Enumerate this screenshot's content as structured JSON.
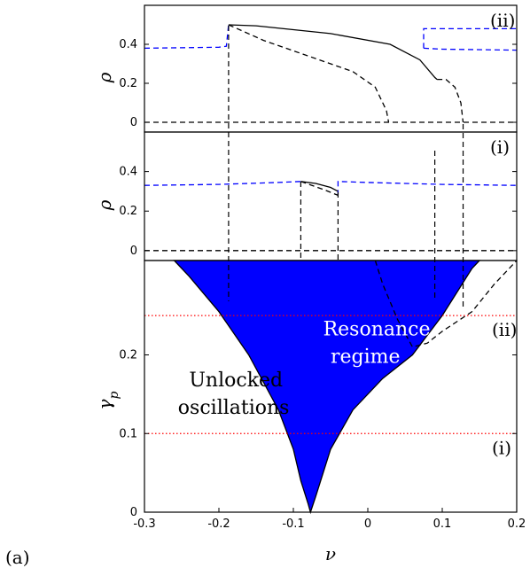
{
  "figure_label": "(a)",
  "chart_data": [
    {
      "type": "line",
      "panel": "top",
      "panel_tag": "(ii)",
      "ylabel": "ρ",
      "xlim": [
        -0.3,
        0.2
      ],
      "ylim": [
        -0.05,
        0.6
      ],
      "yticks": [
        "0",
        "0.2",
        "0.4"
      ],
      "grid": false,
      "series": [
        {
          "color": "#0000ff",
          "style": "dashed",
          "points": [
            [
              -0.3,
              0.38
            ],
            [
              -0.2,
              0.385
            ],
            [
              -0.19,
              0.39
            ],
            [
              -0.187,
              0.5
            ]
          ]
        },
        {
          "color": "#0000ff",
          "style": "dashed",
          "points": [
            [
              0.075,
              0.38
            ],
            [
              0.1,
              0.375
            ],
            [
              0.2,
              0.37
            ]
          ]
        },
        {
          "color": "#0000ff",
          "style": "dashed",
          "points": [
            [
              0.075,
              0.38
            ],
            [
              0.075,
              0.48
            ],
            [
              0.2,
              0.48
            ]
          ]
        },
        {
          "color": "#000000",
          "style": "solid",
          "points": [
            [
              -0.187,
              0.5
            ],
            [
              -0.15,
              0.495
            ],
            [
              -0.05,
              0.455
            ],
            [
              0.03,
              0.4
            ],
            [
              0.07,
              0.32
            ],
            [
              0.09,
              0.23
            ],
            [
              0.093,
              0.22
            ]
          ]
        },
        {
          "color": "#000000",
          "style": "dashed",
          "points": [
            [
              -0.187,
              0.5
            ],
            [
              -0.14,
              0.42
            ],
            [
              -0.08,
              0.34
            ],
            [
              -0.02,
              0.26
            ],
            [
              0.01,
              0.18
            ],
            [
              0.025,
              0.06
            ],
            [
              0.028,
              0.0
            ]
          ]
        },
        {
          "color": "#000000",
          "style": "dashed",
          "points": [
            [
              0.093,
              0.22
            ],
            [
              0.105,
              0.22
            ],
            [
              0.117,
              0.18
            ],
            [
              0.125,
              0.1
            ],
            [
              0.128,
              0.0
            ]
          ]
        },
        {
          "color": "#000000",
          "style": "dashed",
          "points": [
            [
              -0.3,
              0.0
            ],
            [
              0.2,
              0.0
            ]
          ]
        }
      ]
    },
    {
      "type": "line",
      "panel": "middle",
      "panel_tag": "(i)",
      "ylabel": "ρ",
      "xlim": [
        -0.3,
        0.2
      ],
      "ylim": [
        -0.05,
        0.6
      ],
      "yticks": [
        "0",
        "0.2",
        "0.4"
      ],
      "grid": false,
      "series": [
        {
          "color": "#0000ff",
          "style": "dashed",
          "points": [
            [
              -0.3,
              0.33
            ],
            [
              -0.2,
              0.335
            ],
            [
              -0.12,
              0.345
            ],
            [
              -0.09,
              0.35
            ]
          ]
        },
        {
          "color": "#0000ff",
          "style": "dashed",
          "points": [
            [
              -0.04,
              0.28
            ],
            [
              -0.04,
              0.35
            ],
            [
              0.0,
              0.345
            ],
            [
              0.1,
              0.335
            ],
            [
              0.2,
              0.33
            ]
          ]
        },
        {
          "color": "#000000",
          "style": "solid",
          "points": [
            [
              -0.09,
              0.35
            ],
            [
              -0.07,
              0.34
            ],
            [
              -0.05,
              0.32
            ],
            [
              -0.04,
              0.3
            ]
          ]
        },
        {
          "color": "#000000",
          "style": "dashed",
          "points": [
            [
              -0.09,
              0.35
            ],
            [
              -0.06,
              0.31
            ],
            [
              -0.04,
              0.28
            ]
          ]
        },
        {
          "color": "#000000",
          "style": "dashed",
          "points": [
            [
              -0.3,
              0.0
            ],
            [
              0.2,
              0.0
            ]
          ]
        }
      ]
    },
    {
      "type": "area",
      "panel": "bottom",
      "xlabel": "ν",
      "ylabel": "γ_p",
      "xlim": [
        -0.3,
        0.2
      ],
      "ylim": [
        0,
        0.32
      ],
      "xticks": [
        "-0.3",
        "-0.2",
        "-0.1",
        "0",
        "0.1",
        "0.2"
      ],
      "yticks": [
        "0",
        "0.1",
        "0.2"
      ],
      "grid": false,
      "fill_color": "#0000ff",
      "resonance_region": {
        "left_boundary": [
          [
            -0.26,
            0.32
          ],
          [
            -0.24,
            0.3
          ],
          [
            -0.2,
            0.255
          ],
          [
            -0.16,
            0.2
          ],
          [
            -0.12,
            0.13
          ],
          [
            -0.1,
            0.08
          ],
          [
            -0.09,
            0.04
          ],
          [
            -0.08,
            0.01
          ],
          [
            -0.077,
            0.0
          ]
        ],
        "right_boundary": [
          [
            -0.077,
            0.0
          ],
          [
            -0.07,
            0.02
          ],
          [
            -0.05,
            0.08
          ],
          [
            -0.02,
            0.13
          ],
          [
            0.02,
            0.17
          ],
          [
            0.06,
            0.2
          ],
          [
            0.1,
            0.25
          ],
          [
            0.14,
            0.31
          ],
          [
            0.15,
            0.32
          ]
        ]
      },
      "dashed_curve": [
        [
          0.01,
          0.32
        ],
        [
          0.02,
          0.29
        ],
        [
          0.04,
          0.245
        ],
        [
          0.06,
          0.21
        ],
        [
          0.08,
          0.215
        ],
        [
          0.1,
          0.23
        ],
        [
          0.14,
          0.255
        ],
        [
          0.17,
          0.29
        ],
        [
          0.2,
          0.32
        ]
      ],
      "hlines": [
        {
          "y": 0.25,
          "color": "#ff0000",
          "style": "dotted",
          "tag": "(ii)"
        },
        {
          "y": 0.1,
          "color": "#ff0000",
          "style": "dotted",
          "tag": "(i)"
        }
      ],
      "annotations": [
        {
          "text": "Resonance",
          "color": "#ffffff",
          "x": -0.06,
          "y": 0.225
        },
        {
          "text": "regime",
          "color": "#ffffff",
          "x": -0.05,
          "y": 0.19
        },
        {
          "text": "Unlocked",
          "color": "#000000",
          "x": -0.24,
          "y": 0.16
        },
        {
          "text": "oscillations",
          "color": "#000000",
          "x": -0.255,
          "y": 0.125
        }
      ],
      "vertical_guides": [
        -0.187,
        -0.09,
        -0.04,
        0.09,
        0.128
      ]
    }
  ]
}
